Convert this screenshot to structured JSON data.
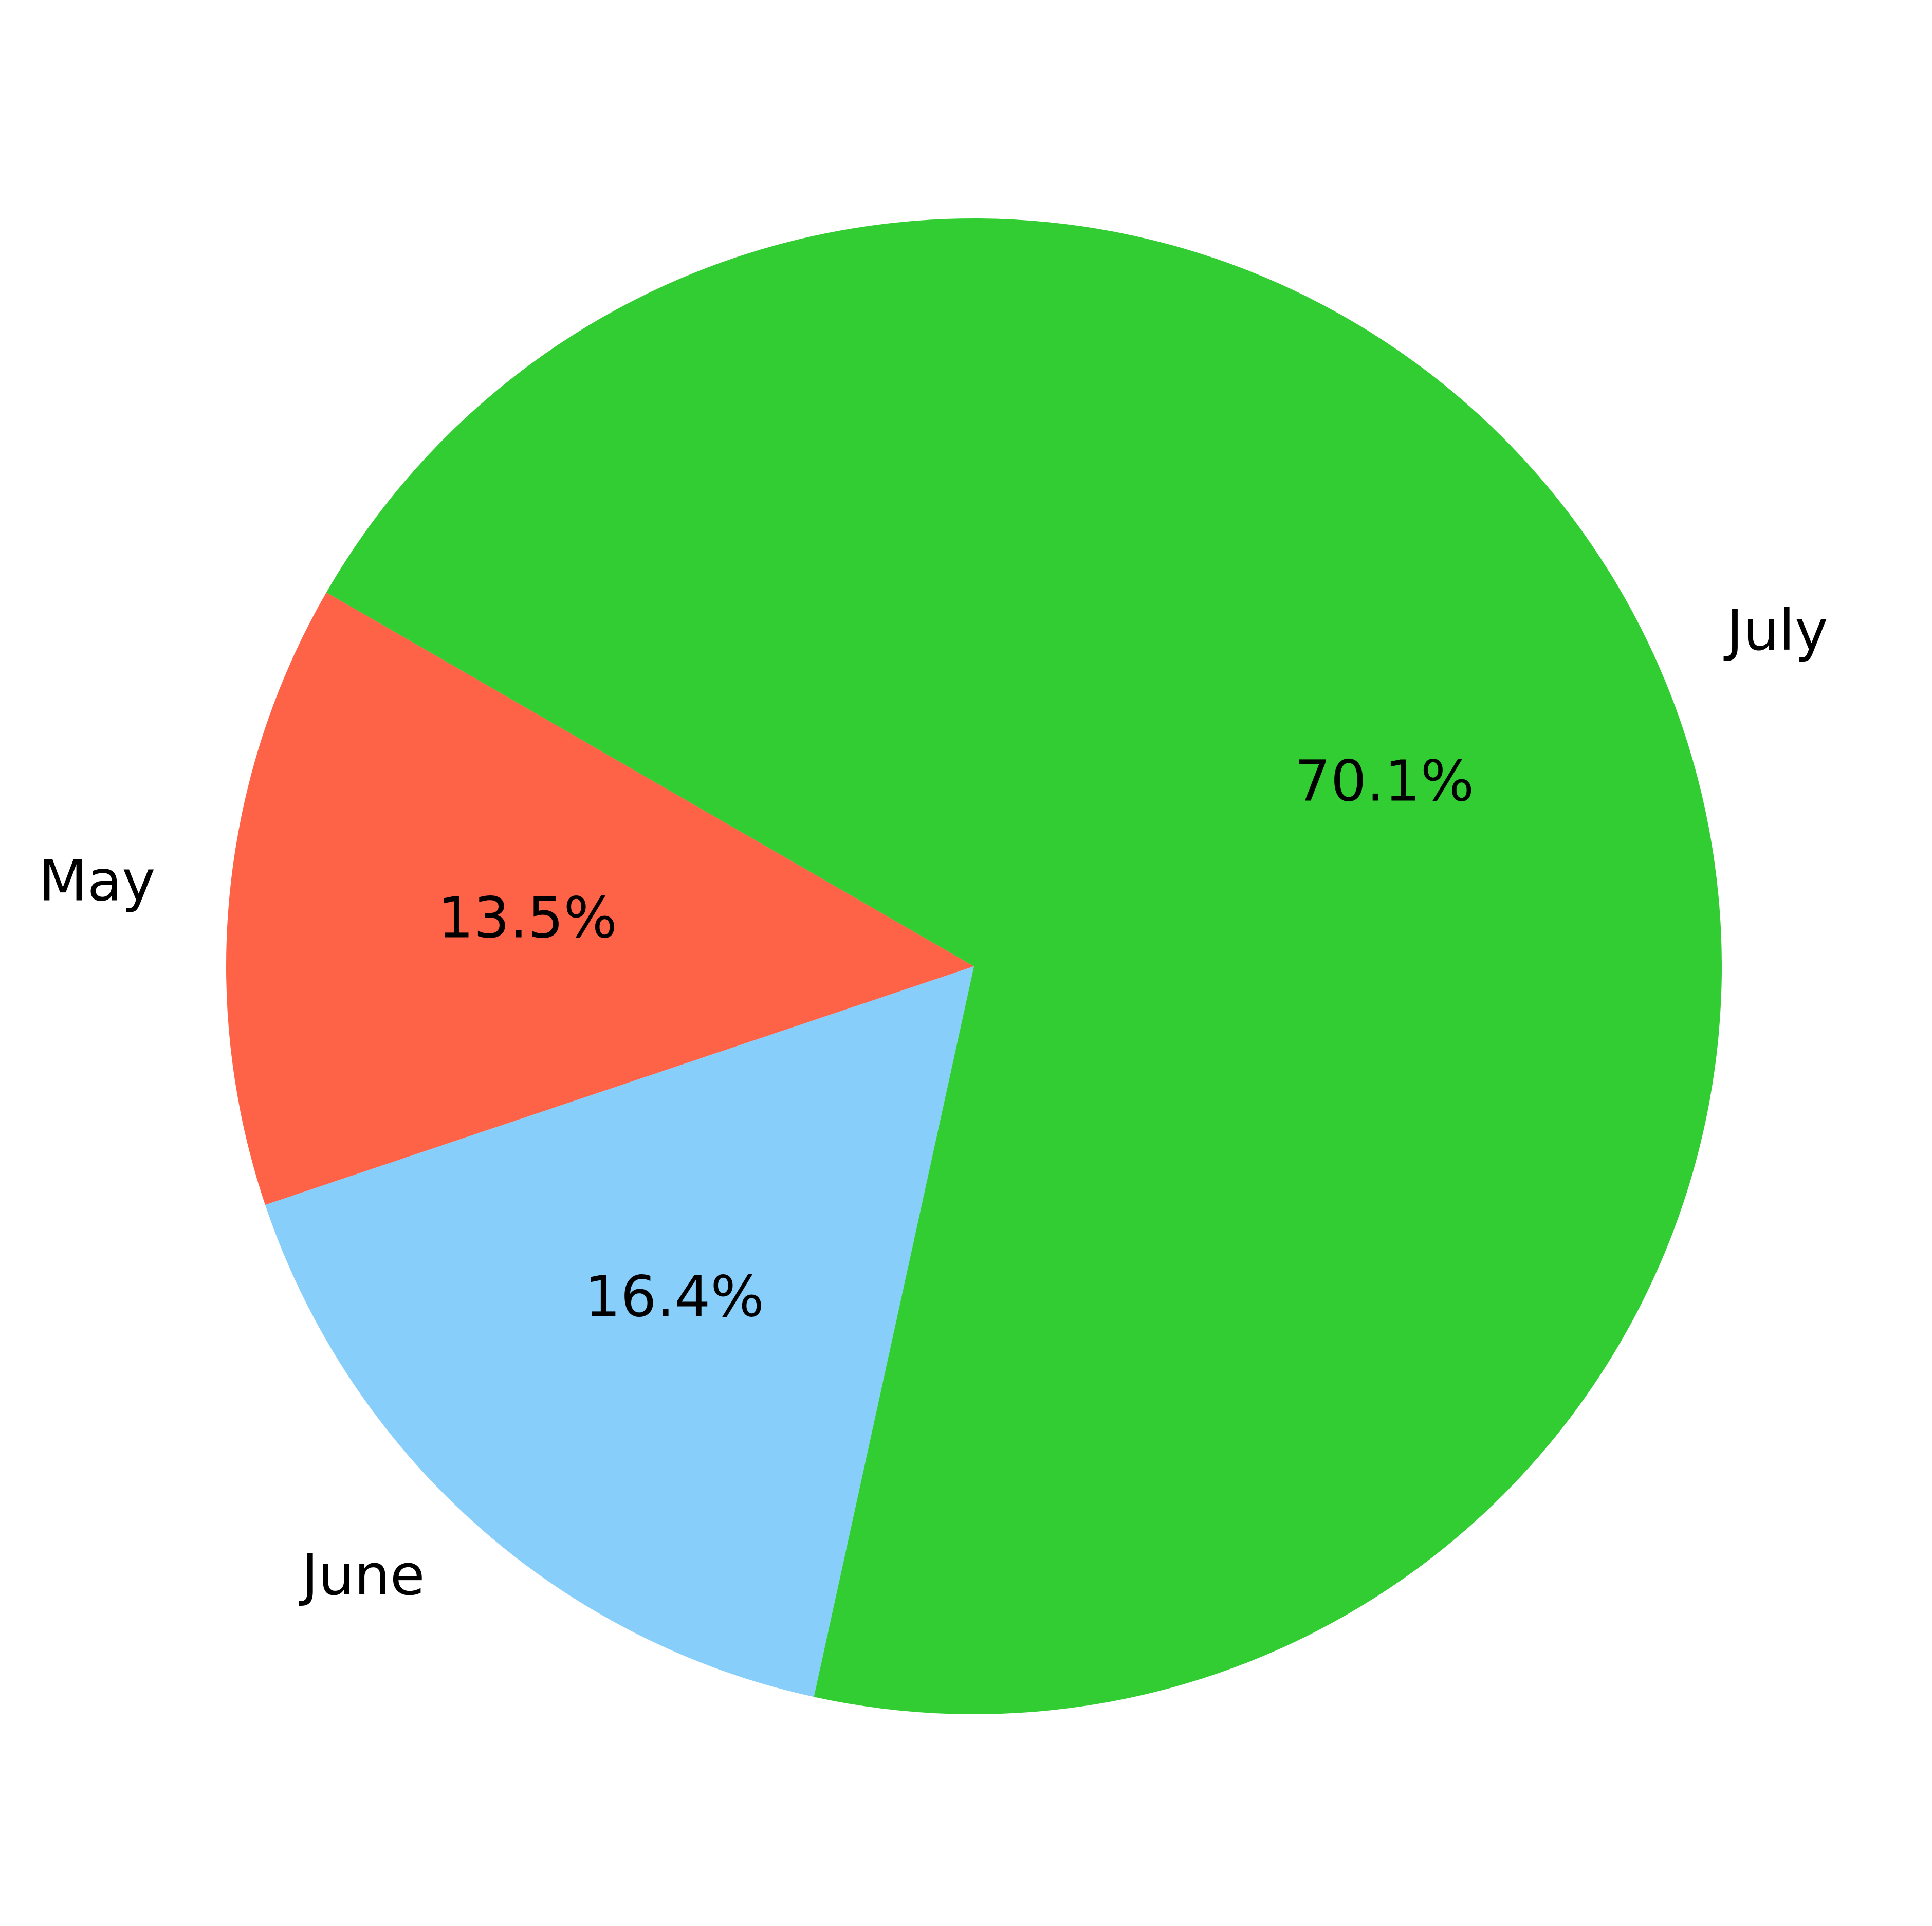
{
  "chart_data": {
    "type": "pie",
    "categories": [
      "May",
      "June",
      "July"
    ],
    "values": [
      13.5,
      16.4,
      70.1
    ],
    "percent_labels": [
      "13.5%",
      "16.4%",
      "70.1%"
    ],
    "colors": [
      "#ff6347",
      "#87cefa",
      "#32cd32"
    ],
    "start_angle_deg": 150,
    "direction": "counterclockwise"
  }
}
